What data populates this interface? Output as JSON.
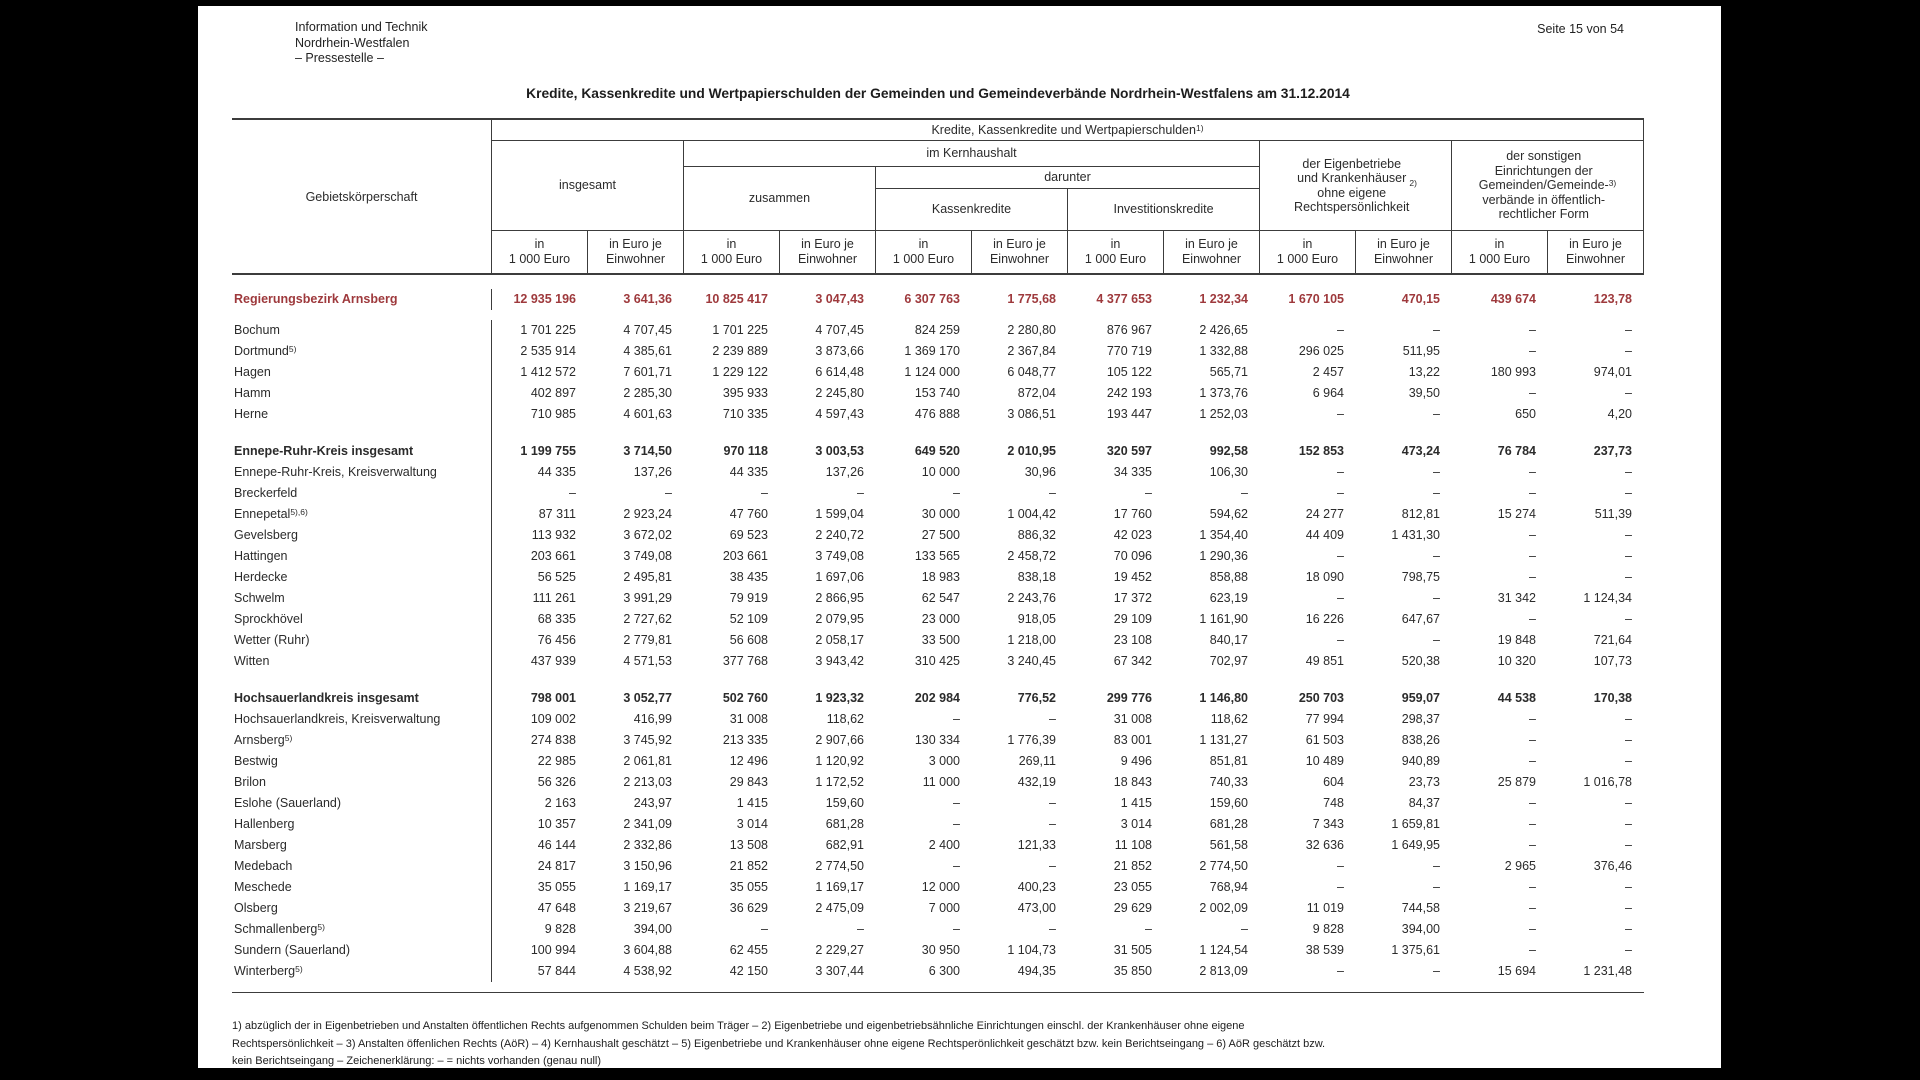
{
  "colors": {
    "accent_red": "#9e393c",
    "text": "#2b2b2b"
  },
  "page": {
    "letterhead": [
      "Information und Technik",
      "Nordrhein-Westfalen",
      "– Pressestelle –"
    ],
    "page_number": "Seite 15 von 54",
    "title": "Kredite, Kassenkredite und Wertpapierschulden der Gemeinden und Gemeindeverbände Nordrhein-Westfalens am 31.12.2014"
  },
  "table": {
    "corner_label": "Gebietskörperschaft",
    "top_header": "Kredite, Kassenkredite und Wertpapierschulden",
    "top_header_fn": "1)",
    "group_insgesamt": "insgesamt",
    "group_kernhaushalt": "im Kernhaushalt",
    "group_zusammen": "zusammen",
    "group_darunter": "darunter",
    "group_kassenkredite": "Kassenkredite",
    "group_investitionskredite": "Investitionskredite",
    "group_eigenbetriebe": "der Eigenbetriebe\nund Krankenhäuser\nohne eigene\nRechtspersönlichkeit",
    "group_eigenbetriebe_fn": "2)",
    "group_sonstige": "der sonstigen\nEinrichtungen der\nGemeinden/Gemeinde-\nverbände in öffentlich-\nrechtlicher Form",
    "group_sonstige_fn": "3)",
    "unit_thousand": "in\n1 000 Euro",
    "unit_per_capita": "in Euro je\nEinwohner",
    "rows": [
      {
        "label": "Regierungsbezirk Arnsberg",
        "sup": "",
        "style": "district",
        "values": [
          "12 935 196",
          "3 641,36",
          "10 825 417",
          "3 047,43",
          "6 307 763",
          "1 775,68",
          "4 377 653",
          "1 232,34",
          "1 670 105",
          "470,15",
          "439 674",
          "123,78"
        ]
      },
      {
        "label": "Bochum",
        "sup": "",
        "style": "normal",
        "values": [
          "1 701 225",
          "4 707,45",
          "1 701 225",
          "4 707,45",
          "824 259",
          "2 280,80",
          "876 967",
          "2 426,65",
          "–",
          "–",
          "–",
          "–"
        ]
      },
      {
        "label": "Dortmund",
        "sup": "5)",
        "style": "normal",
        "values": [
          "2 535 914",
          "4 385,61",
          "2 239 889",
          "3 873,66",
          "1 369 170",
          "2 367,84",
          "770 719",
          "1 332,88",
          "296 025",
          "511,95",
          "–",
          "–"
        ]
      },
      {
        "label": "Hagen",
        "sup": "",
        "style": "normal",
        "values": [
          "1 412 572",
          "7 601,71",
          "1 229 122",
          "6 614,48",
          "1 124 000",
          "6 048,77",
          "105 122",
          "565,71",
          "2 457",
          "13,22",
          "180 993",
          "974,01"
        ]
      },
      {
        "label": "Hamm",
        "sup": "",
        "style": "normal",
        "values": [
          "402 897",
          "2 285,30",
          "395 933",
          "2 245,80",
          "153 740",
          "872,04",
          "242 193",
          "1 373,76",
          "6 964",
          "39,50",
          "–",
          "–"
        ]
      },
      {
        "label": "Herne",
        "sup": "",
        "style": "normal",
        "values": [
          "710 985",
          "4 601,63",
          "710 335",
          "4 597,43",
          "476 888",
          "3 086,51",
          "193 447",
          "1 252,03",
          "–",
          "–",
          "650",
          "4,20"
        ]
      },
      {
        "type": "spacer"
      },
      {
        "label": "Ennepe-Ruhr-Kreis insgesamt",
        "sup": "",
        "style": "total",
        "values": [
          "1 199 755",
          "3 714,50",
          "970 118",
          "3 003,53",
          "649 520",
          "2 010,95",
          "320 597",
          "992,58",
          "152 853",
          "473,24",
          "76 784",
          "237,73"
        ]
      },
      {
        "label": "Ennepe-Ruhr-Kreis, Kreisverwaltung",
        "sup": "",
        "style": "normal",
        "values": [
          "44 335",
          "137,26",
          "44 335",
          "137,26",
          "10 000",
          "30,96",
          "34 335",
          "106,30",
          "–",
          "–",
          "–",
          "–"
        ]
      },
      {
        "label": "Breckerfeld",
        "sup": "",
        "style": "normal",
        "values": [
          "–",
          "–",
          "–",
          "–",
          "–",
          "–",
          "–",
          "–",
          "–",
          "–",
          "–",
          "–"
        ]
      },
      {
        "label": "Ennepetal",
        "sup": "5),6)",
        "style": "normal",
        "values": [
          "87 311",
          "2 923,24",
          "47 760",
          "1 599,04",
          "30 000",
          "1 004,42",
          "17 760",
          "594,62",
          "24 277",
          "812,81",
          "15 274",
          "511,39"
        ]
      },
      {
        "label": "Gevelsberg",
        "sup": "",
        "style": "normal",
        "values": [
          "113 932",
          "3 672,02",
          "69 523",
          "2 240,72",
          "27 500",
          "886,32",
          "42 023",
          "1 354,40",
          "44 409",
          "1 431,30",
          "–",
          "–"
        ]
      },
      {
        "label": "Hattingen",
        "sup": "",
        "style": "normal",
        "values": [
          "203 661",
          "3 749,08",
          "203 661",
          "3 749,08",
          "133 565",
          "2 458,72",
          "70 096",
          "1 290,36",
          "–",
          "–",
          "–",
          "–"
        ]
      },
      {
        "label": "Herdecke",
        "sup": "",
        "style": "normal",
        "values": [
          "56 525",
          "2 495,81",
          "38 435",
          "1 697,06",
          "18 983",
          "838,18",
          "19 452",
          "858,88",
          "18 090",
          "798,75",
          "–",
          "–"
        ]
      },
      {
        "label": "Schwelm",
        "sup": "",
        "style": "normal",
        "values": [
          "111 261",
          "3 991,29",
          "79 919",
          "2 866,95",
          "62 547",
          "2 243,76",
          "17 372",
          "623,19",
          "–",
          "–",
          "31 342",
          "1 124,34"
        ]
      },
      {
        "label": "Sprockhövel",
        "sup": "",
        "style": "normal",
        "values": [
          "68 335",
          "2 727,62",
          "52 109",
          "2 079,95",
          "23 000",
          "918,05",
          "29 109",
          "1 161,90",
          "16 226",
          "647,67",
          "–",
          "–"
        ]
      },
      {
        "label": "Wetter (Ruhr)",
        "sup": "",
        "style": "normal",
        "values": [
          "76 456",
          "2 779,81",
          "56 608",
          "2 058,17",
          "33 500",
          "1 218,00",
          "23 108",
          "840,17",
          "–",
          "–",
          "19 848",
          "721,64"
        ]
      },
      {
        "label": "Witten",
        "sup": "",
        "style": "normal",
        "values": [
          "437 939",
          "4 571,53",
          "377 768",
          "3 943,42",
          "310 425",
          "3 240,45",
          "67 342",
          "702,97",
          "49 851",
          "520,38",
          "10 320",
          "107,73"
        ]
      },
      {
        "type": "spacer"
      },
      {
        "label": "Hochsauerlandkreis insgesamt",
        "sup": "",
        "style": "total",
        "values": [
          "798 001",
          "3 052,77",
          "502 760",
          "1 923,32",
          "202 984",
          "776,52",
          "299 776",
          "1 146,80",
          "250 703",
          "959,07",
          "44 538",
          "170,38"
        ]
      },
      {
        "label": "Hochsauerlandkreis, Kreisverwaltung",
        "sup": "",
        "style": "normal",
        "values": [
          "109 002",
          "416,99",
          "31 008",
          "118,62",
          "–",
          "–",
          "31 008",
          "118,62",
          "77 994",
          "298,37",
          "–",
          "–"
        ]
      },
      {
        "label": "Arnsberg",
        "sup": "5)",
        "style": "normal",
        "values": [
          "274 838",
          "3 745,92",
          "213 335",
          "2 907,66",
          "130 334",
          "1 776,39",
          "83 001",
          "1 131,27",
          "61 503",
          "838,26",
          "–",
          "–"
        ]
      },
      {
        "label": "Bestwig",
        "sup": "",
        "style": "normal",
        "values": [
          "22 985",
          "2 061,81",
          "12 496",
          "1 120,92",
          "3 000",
          "269,11",
          "9 496",
          "851,81",
          "10 489",
          "940,89",
          "–",
          "–"
        ]
      },
      {
        "label": "Brilon",
        "sup": "",
        "style": "normal",
        "values": [
          "56 326",
          "2 213,03",
          "29 843",
          "1 172,52",
          "11 000",
          "432,19",
          "18 843",
          "740,33",
          "604",
          "23,73",
          "25 879",
          "1 016,78"
        ]
      },
      {
        "label": "Eslohe (Sauerland)",
        "sup": "",
        "style": "normal",
        "values": [
          "2 163",
          "243,97",
          "1 415",
          "159,60",
          "–",
          "–",
          "1 415",
          "159,60",
          "748",
          "84,37",
          "–",
          "–"
        ]
      },
      {
        "label": "Hallenberg",
        "sup": "",
        "style": "normal",
        "values": [
          "10 357",
          "2 341,09",
          "3 014",
          "681,28",
          "–",
          "–",
          "3 014",
          "681,28",
          "7 343",
          "1 659,81",
          "–",
          "–"
        ]
      },
      {
        "label": "Marsberg",
        "sup": "",
        "style": "normal",
        "values": [
          "46 144",
          "2 332,86",
          "13 508",
          "682,91",
          "2 400",
          "121,33",
          "11 108",
          "561,58",
          "32 636",
          "1 649,95",
          "–",
          "–"
        ]
      },
      {
        "label": "Medebach",
        "sup": "",
        "style": "normal",
        "values": [
          "24 817",
          "3 150,96",
          "21 852",
          "2 774,50",
          "–",
          "–",
          "21 852",
          "2 774,50",
          "–",
          "–",
          "2 965",
          "376,46"
        ]
      },
      {
        "label": "Meschede",
        "sup": "",
        "style": "normal",
        "values": [
          "35 055",
          "1 169,17",
          "35 055",
          "1 169,17",
          "12 000",
          "400,23",
          "23 055",
          "768,94",
          "–",
          "–",
          "–",
          "–"
        ]
      },
      {
        "label": "Olsberg",
        "sup": "",
        "style": "normal",
        "values": [
          "47 648",
          "3 219,67",
          "36 629",
          "2 475,09",
          "7 000",
          "473,00",
          "29 629",
          "2 002,09",
          "11 019",
          "744,58",
          "–",
          "–"
        ]
      },
      {
        "label": "Schmallenberg",
        "sup": "5)",
        "style": "normal",
        "values": [
          "9 828",
          "394,00",
          "–",
          "–",
          "–",
          "–",
          "–",
          "–",
          "9 828",
          "394,00",
          "–",
          "–"
        ]
      },
      {
        "label": "Sundern (Sauerland)",
        "sup": "",
        "style": "normal",
        "values": [
          "100 994",
          "3 604,88",
          "62 455",
          "2 229,27",
          "30 950",
          "1 104,73",
          "31 505",
          "1 124,54",
          "38 539",
          "1 375,61",
          "–",
          "–"
        ]
      },
      {
        "label": "Winterberg",
        "sup": "5)",
        "style": "normal",
        "values": [
          "57 844",
          "4 538,92",
          "42 150",
          "3 307,44",
          "6 300",
          "494,35",
          "35 850",
          "2 813,09",
          "–",
          "–",
          "15 694",
          "1 231,48"
        ]
      }
    ]
  },
  "footnotes": [
    "1) abzüglich der in Eigenbetrieben und Anstalten öffentlichen Rechts aufgenommen Schulden beim Träger – 2) Eigenbetriebe und eigenbetriebsähnliche Einrichtungen einschl. der Krankenhäuser ohne eigene",
    "Rechtspersönlichkeit – 3) Anstalten öffenlichen Rechts (AöR) – 4) Kernhaushalt geschätzt – 5) Eigenbetriebe und Krankenhäuser ohne eigene Rechtsperönlichkeit geschätzt bzw. kein Berichtseingang – 6) AöR geschätzt bzw.",
    "kein Berichtseingang – Zeichenerklärung: – = nichts vorhanden (genau null)"
  ]
}
